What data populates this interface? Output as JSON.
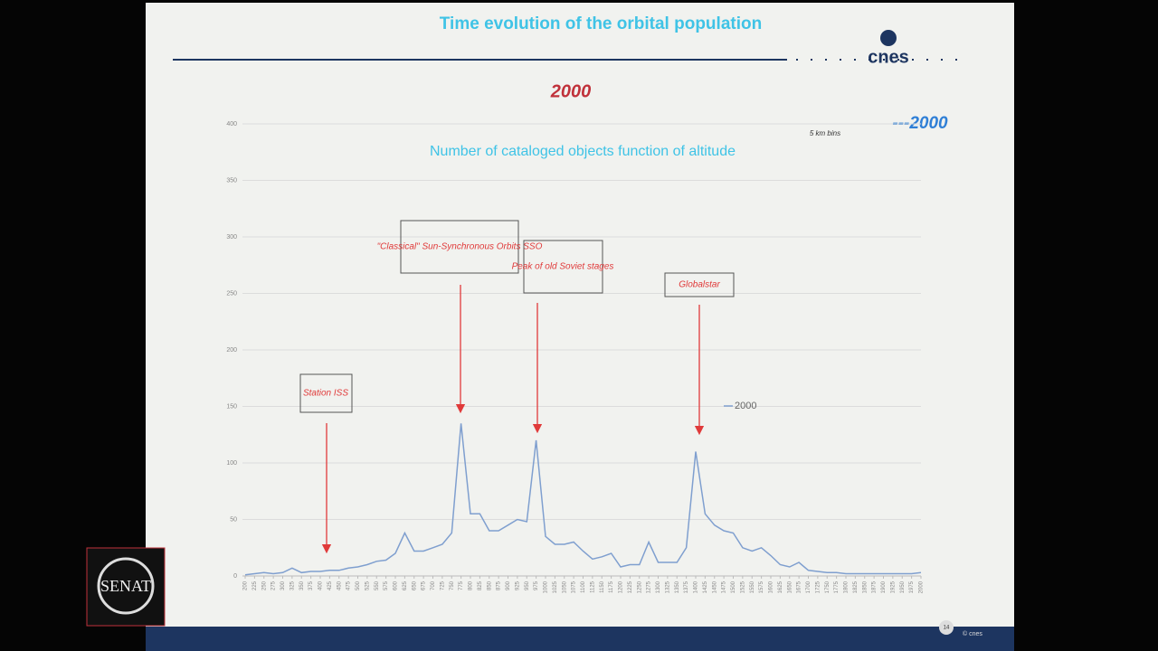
{
  "slide": {
    "title": "Time evolution of the orbital population",
    "logo": "cnes",
    "subtitle": "2000",
    "legend_label": "---2000",
    "bin_note": "5 km bins",
    "tag": "SENAT",
    "footer": "© cnes",
    "page": "14"
  },
  "annotations": {
    "sso": "\"Classical\" Sun-Synchronous Orbits SSO",
    "soviet": "Peak of old Soviet stages",
    "iss": "Station ISS",
    "globalstar": "Globalstar"
  },
  "chart_data": {
    "type": "line",
    "title": "Number of cataloged objects function of altitude",
    "x": [
      200,
      225,
      250,
      275,
      300,
      325,
      350,
      375,
      400,
      425,
      450,
      475,
      500,
      525,
      550,
      575,
      600,
      625,
      650,
      675,
      700,
      725,
      750,
      775,
      800,
      825,
      850,
      875,
      900,
      925,
      950,
      975,
      1000,
      1025,
      1050,
      1075,
      1100,
      1125,
      1150,
      1175,
      1200,
      1225,
      1250,
      1275,
      1300,
      1325,
      1350,
      1375,
      1400,
      1425,
      1450,
      1475,
      1500,
      1525,
      1550,
      1575,
      1600,
      1625,
      1650,
      1675,
      1700,
      1725,
      1750,
      1775,
      1800,
      1825,
      1850,
      1875,
      1900,
      1925,
      1950,
      1975,
      2000
    ],
    "series": [
      {
        "name": "2000",
        "color": "#7f9fcf",
        "values": [
          1,
          2,
          3,
          2,
          3,
          7,
          3,
          4,
          4,
          5,
          5,
          7,
          8,
          10,
          13,
          14,
          20,
          38,
          22,
          22,
          25,
          28,
          38,
          135,
          55,
          55,
          40,
          40,
          45,
          50,
          48,
          120,
          35,
          28,
          28,
          30,
          22,
          15,
          17,
          20,
          8,
          10,
          10,
          30,
          12,
          12,
          12,
          25,
          110,
          55,
          45,
          40,
          38,
          25,
          22,
          25,
          18,
          10,
          8,
          12,
          5,
          4,
          3,
          3,
          2,
          2,
          2,
          2,
          2,
          2,
          2,
          2,
          3
        ]
      }
    ],
    "xlim": [
      200,
      2000
    ],
    "xticks": [
      200,
      225,
      250,
      275,
      300,
      325,
      350,
      375,
      400,
      425,
      450,
      475,
      500,
      525,
      550,
      575,
      600,
      625,
      650,
      675,
      700,
      725,
      750,
      775,
      800,
      825,
      850,
      875,
      900,
      925,
      950,
      975,
      1000,
      1025,
      1050,
      1075,
      1100,
      1125,
      1150,
      1175,
      1200,
      1225,
      1250,
      1275,
      1300,
      1325,
      1350,
      1375,
      1400,
      1425,
      1450,
      1475,
      1500,
      1525,
      1550,
      1575,
      1600,
      1625,
      1650,
      1675,
      1700,
      1725,
      1750,
      1775,
      1800,
      1825,
      1850,
      1875,
      1900,
      1925,
      1950,
      1975,
      2000
    ],
    "ylim": [
      0,
      400
    ],
    "yticks": [
      0,
      50,
      100,
      150,
      200,
      250,
      300,
      350,
      400
    ],
    "grid": true
  }
}
